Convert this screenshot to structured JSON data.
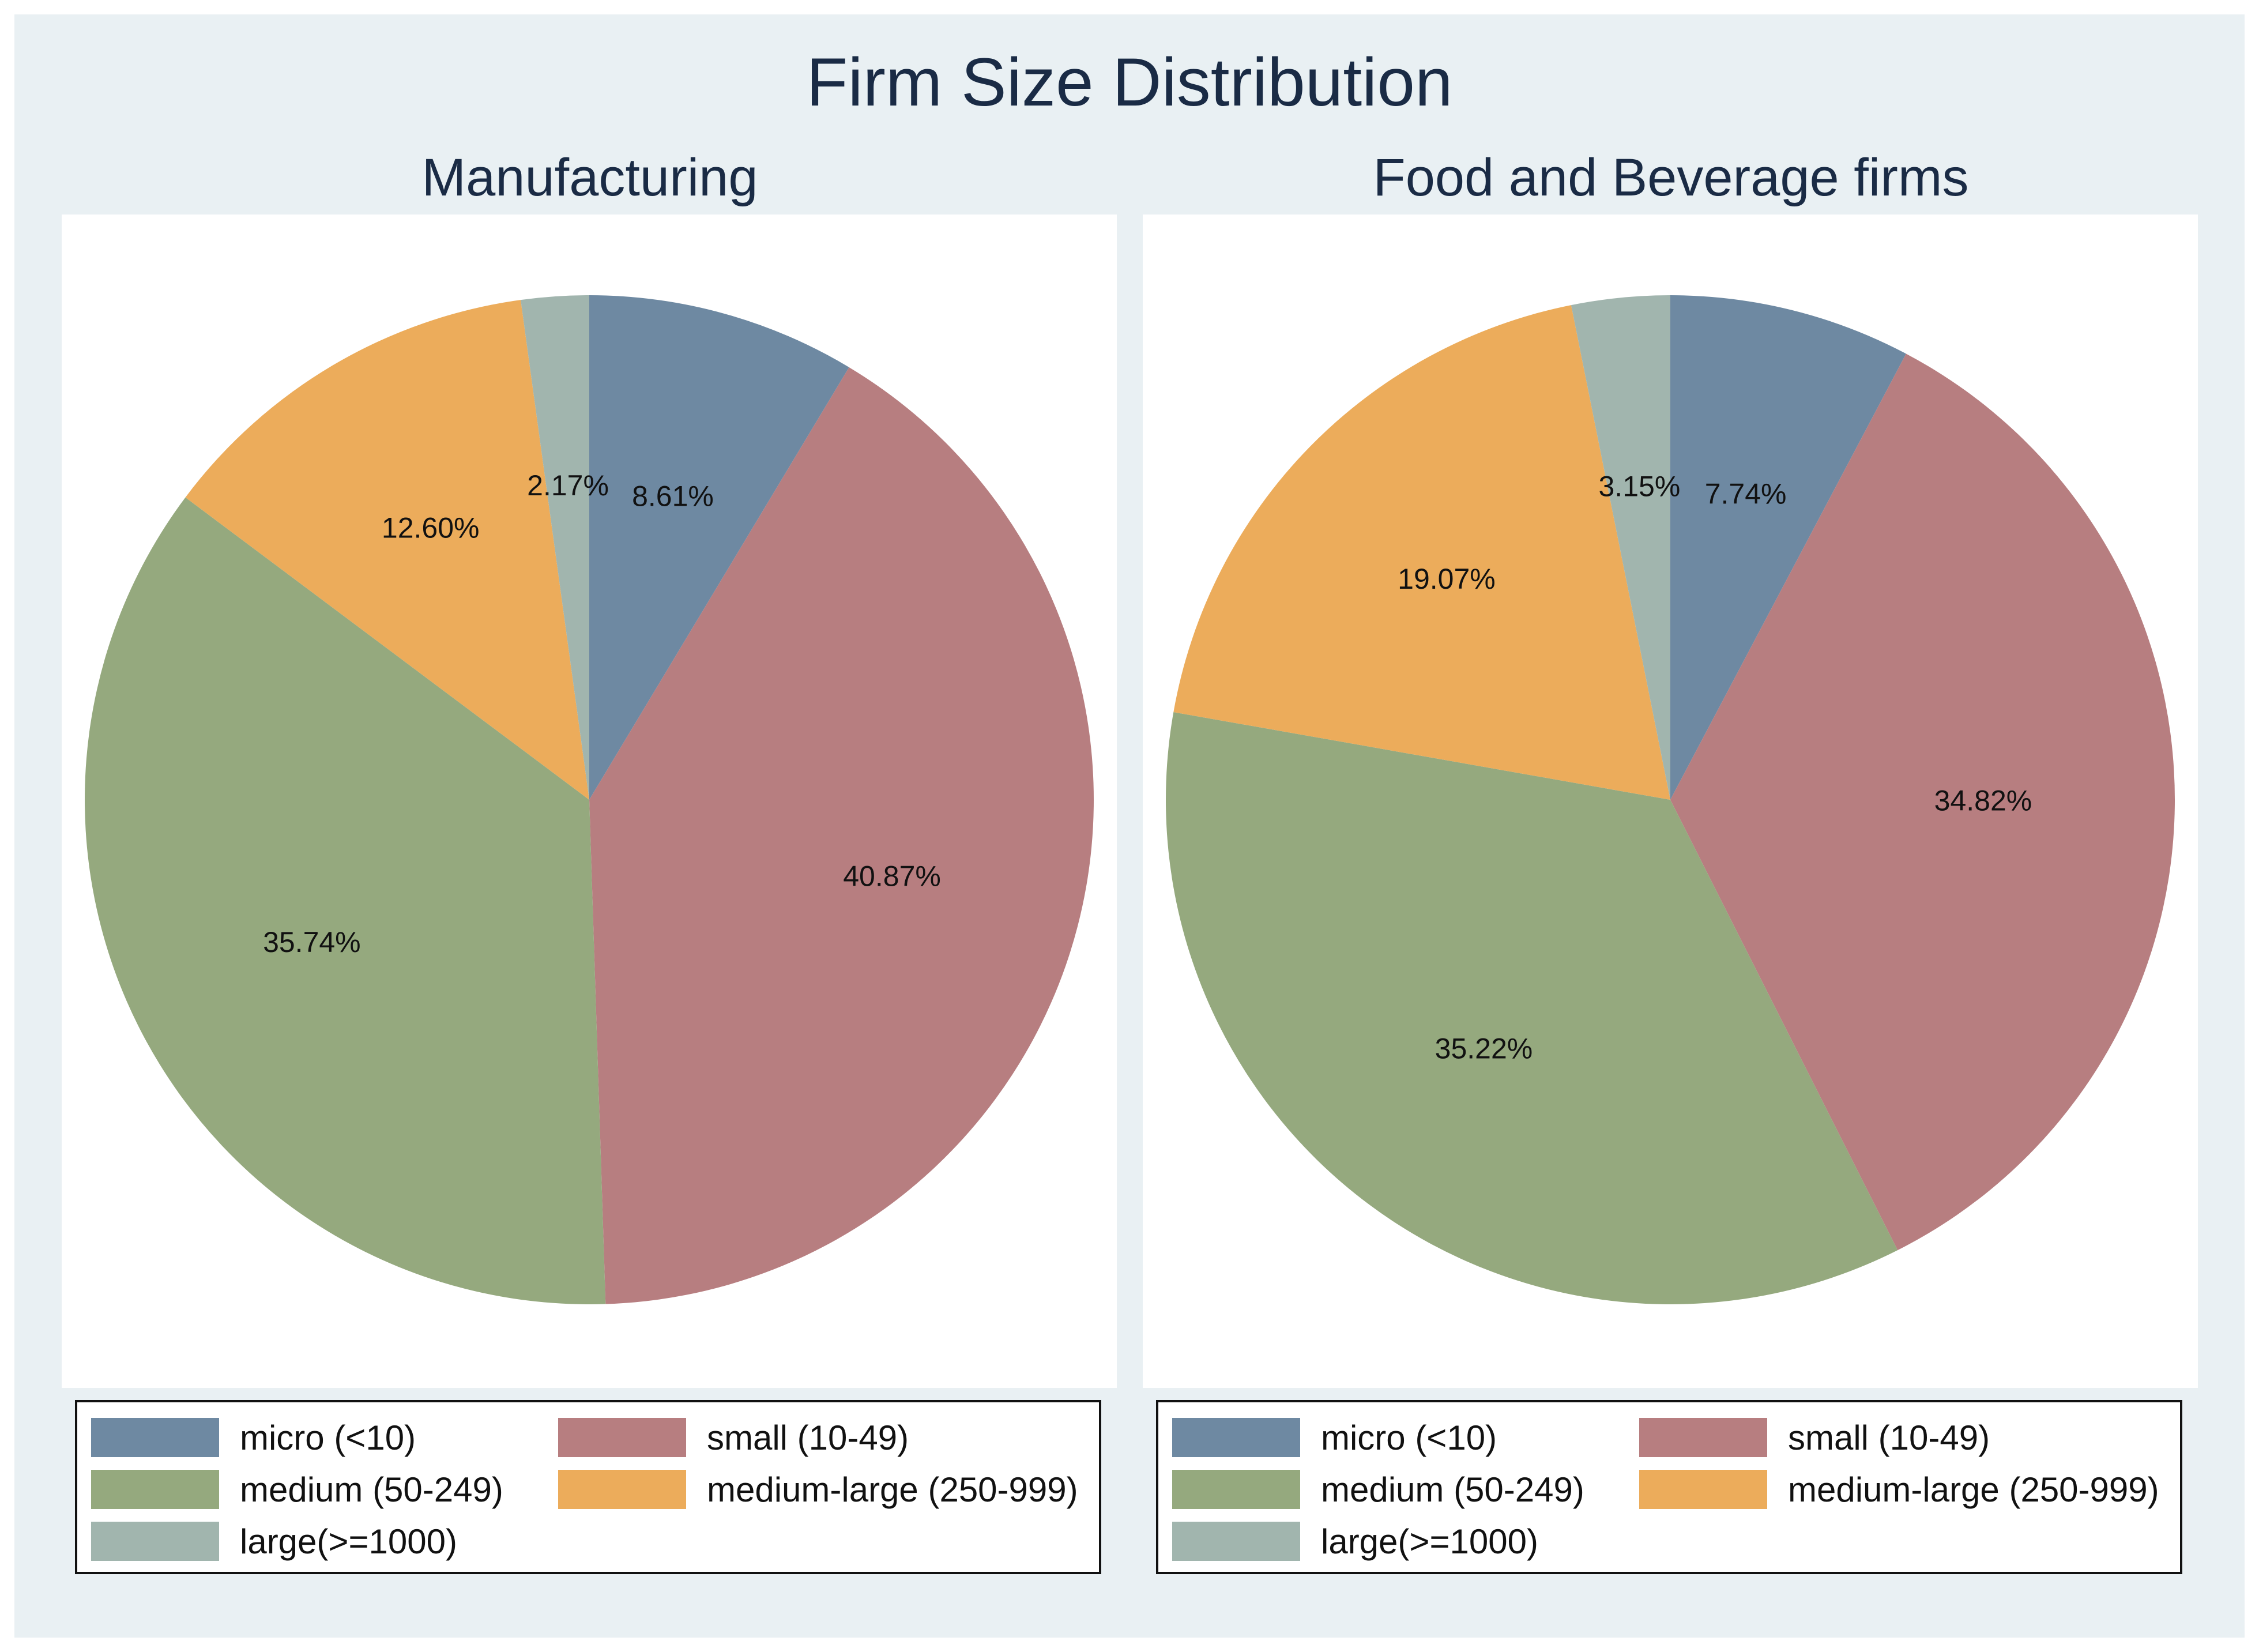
{
  "title": "Firm Size Distribution",
  "categories": [
    "micro (<10)",
    "small (10-49)",
    "medium (50-249)",
    "medium-large (250-999)",
    "large(>=1000)"
  ],
  "colors": [
    "#6e89a2",
    "#b77e80",
    "#95a97e",
    "#ecac5b",
    "#a1b5ae"
  ],
  "chart_data": [
    {
      "type": "pie",
      "title": "Manufacturing",
      "categories": [
        "micro (<10)",
        "small (10-49)",
        "medium (50-249)",
        "medium-large (250-999)",
        "large(>=1000)"
      ],
      "values": [
        8.61,
        40.87,
        35.74,
        12.6,
        2.17
      ],
      "labels": [
        "8.61%",
        "40.87%",
        "35.74%",
        "12.60%",
        "2.17%"
      ],
      "legend_position": "bottom"
    },
    {
      "type": "pie",
      "title": "Food and Beverage firms",
      "categories": [
        "micro (<10)",
        "small (10-49)",
        "medium (50-249)",
        "medium-large (250-999)",
        "large(>=1000)"
      ],
      "values": [
        7.74,
        34.82,
        35.22,
        19.07,
        3.15
      ],
      "labels": [
        "7.74%",
        "34.82%",
        "35.22%",
        "19.07%",
        "3.15%"
      ],
      "legend_position": "bottom"
    }
  ]
}
